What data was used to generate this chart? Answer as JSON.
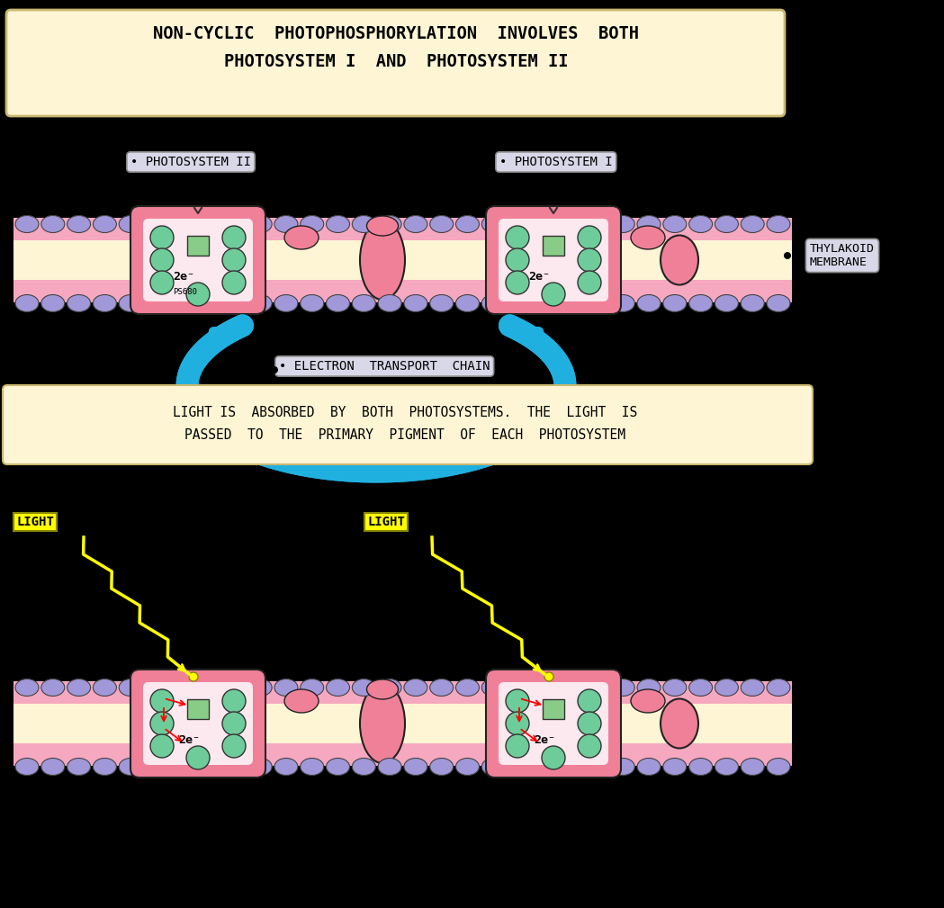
{
  "bg_color": "#000000",
  "membrane_bg": "#fef5d4",
  "membrane_outer_color": "#f5a0b5",
  "membrane_inner_color": "#fce8ee",
  "protein_complex_color": "#f08098",
  "green_circle_color": "#6dcc99",
  "green_circle_edge": "#222222",
  "purple_circle_color": "#a098d8",
  "pink_oval_color": "#f08098",
  "green_square_color": "#88cc88",
  "cyan_arrow_color": "#20b0e0",
  "title_text": "NON-CYCLIC  PHOTOPHOSPHORYLATION  INVOLVES  BOTH\nPHOTOSYSTEM I  AND  PHOTOSYSTEM II",
  "title_bg": "#fef5d4",
  "title_border": "#c8b870",
  "label_ps2": "• PHOTOSYSTEM II",
  "label_ps1": "• PHOTOSYSTEM I",
  "label_etc": "• ELECTRON  TRANSPORT  CHAIN",
  "label_thylakoid": "THYLAKOID\nMEMBRANE",
  "text_2e": "2e⁻",
  "text_ps680": "PS680",
  "label_light": "LIGHT",
  "caption_text": "LIGHT IS  ABSORBED  BY  BOTH  PHOTOSYSTEMS.  THE  LIGHT  IS\nPASSED  TO  THE  PRIMARY  PIGMENT  OF  EACH  PHOTOSYSTEM",
  "caption_bg": "#fef5d4"
}
